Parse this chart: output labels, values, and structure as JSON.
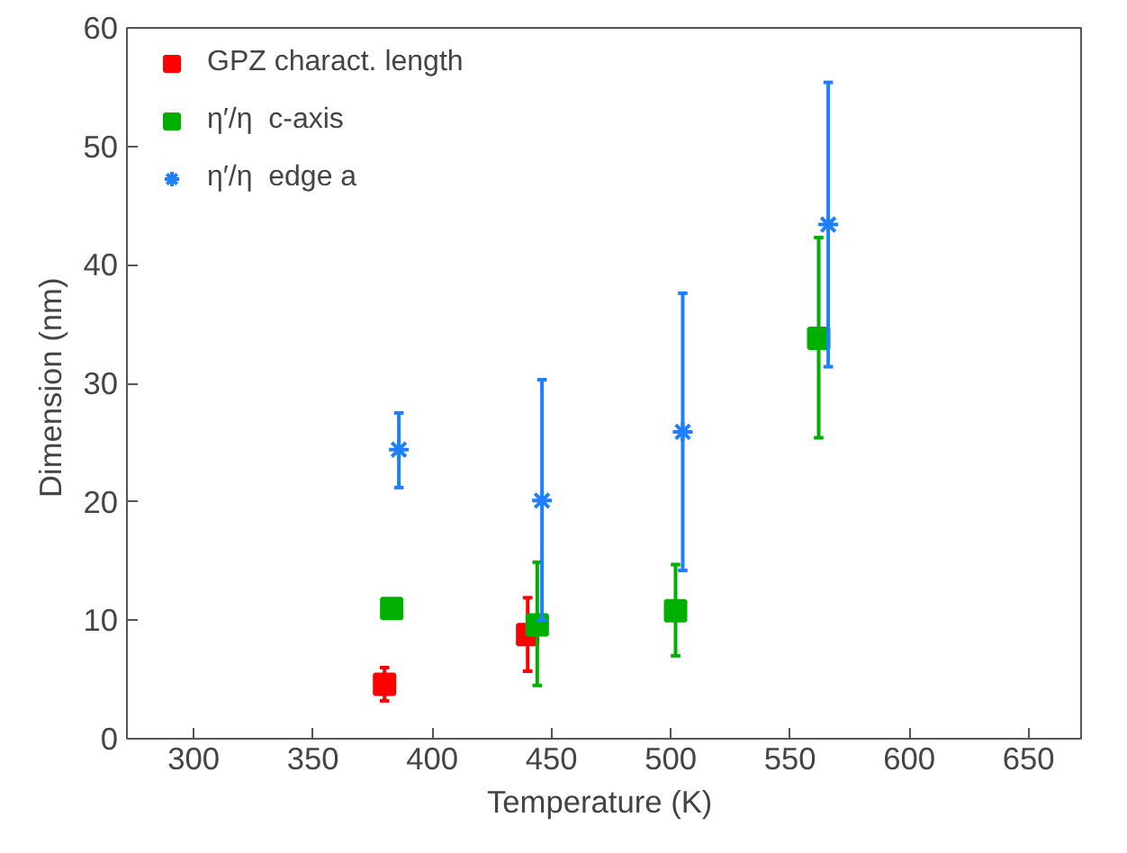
{
  "chart_data": {
    "type": "scatter",
    "xlabel": "Temperature  (K)",
    "ylabel": "Dimension  (nm)",
    "xlim": [
      272,
      672
    ],
    "ylim": [
      0,
      60
    ],
    "xticks": [
      300,
      350,
      400,
      450,
      500,
      550,
      600,
      650
    ],
    "yticks": [
      0,
      10,
      20,
      30,
      40,
      50,
      60
    ],
    "grid": false,
    "legend": "top left",
    "series": [
      {
        "name": "GPZ charact. length",
        "color": "#ff0000",
        "marker": "square",
        "x": [
          380,
          440
        ],
        "values": [
          4.6,
          8.8
        ],
        "errors": [
          [
            3.2,
            6.0
          ],
          [
            5.7,
            11.9
          ]
        ]
      },
      {
        "name": "η′/η  c-axis",
        "color": "#00b000",
        "marker": "square",
        "x": [
          383,
          444,
          502,
          562
        ],
        "values": [
          11.0,
          9.6,
          10.8,
          33.8
        ],
        "errors": [
          null,
          [
            4.5,
            14.9
          ],
          [
            7.0,
            14.7
          ],
          [
            25.4,
            42.3
          ]
        ]
      },
      {
        "name": "η′/η  edge a",
        "color": "#1e7fff",
        "marker": "cross",
        "x": [
          386,
          446,
          505,
          566
        ],
        "values": [
          24.4,
          20.1,
          25.9,
          43.4
        ],
        "errors": [
          [
            21.2,
            27.5
          ],
          [
            10.0,
            30.3
          ],
          [
            14.2,
            37.6
          ],
          [
            31.4,
            55.4
          ]
        ]
      }
    ]
  }
}
